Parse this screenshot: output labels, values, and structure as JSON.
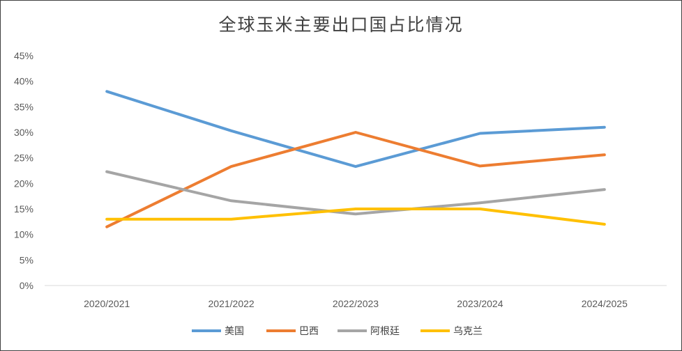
{
  "chart_data": {
    "type": "line",
    "title": "全球玉米主要出口国占比情况",
    "xlabel": "",
    "ylabel": "",
    "categories": [
      "2020/2021",
      "2021/2022",
      "2022/2023",
      "2023/2024",
      "2024/2025"
    ],
    "y_ticks": [
      "0%",
      "5%",
      "10%",
      "15%",
      "20%",
      "25%",
      "30%",
      "35%",
      "40%",
      "45%"
    ],
    "ylim": [
      0,
      45
    ],
    "grid": false,
    "legend_position": "bottom",
    "series": [
      {
        "name": "美国",
        "color": "#5B9BD5",
        "values": [
          38,
          30.3,
          23.3,
          29.8,
          31
        ]
      },
      {
        "name": "巴西",
        "color": "#ED7D31",
        "values": [
          11.5,
          23.3,
          30,
          23.4,
          25.6
        ]
      },
      {
        "name": "阿根廷",
        "color": "#A5A5A5",
        "values": [
          22.3,
          16.6,
          14,
          16.2,
          18.8
        ]
      },
      {
        "name": "乌克兰",
        "color": "#FFC000",
        "values": [
          13,
          13,
          15,
          15,
          12
        ]
      }
    ]
  }
}
